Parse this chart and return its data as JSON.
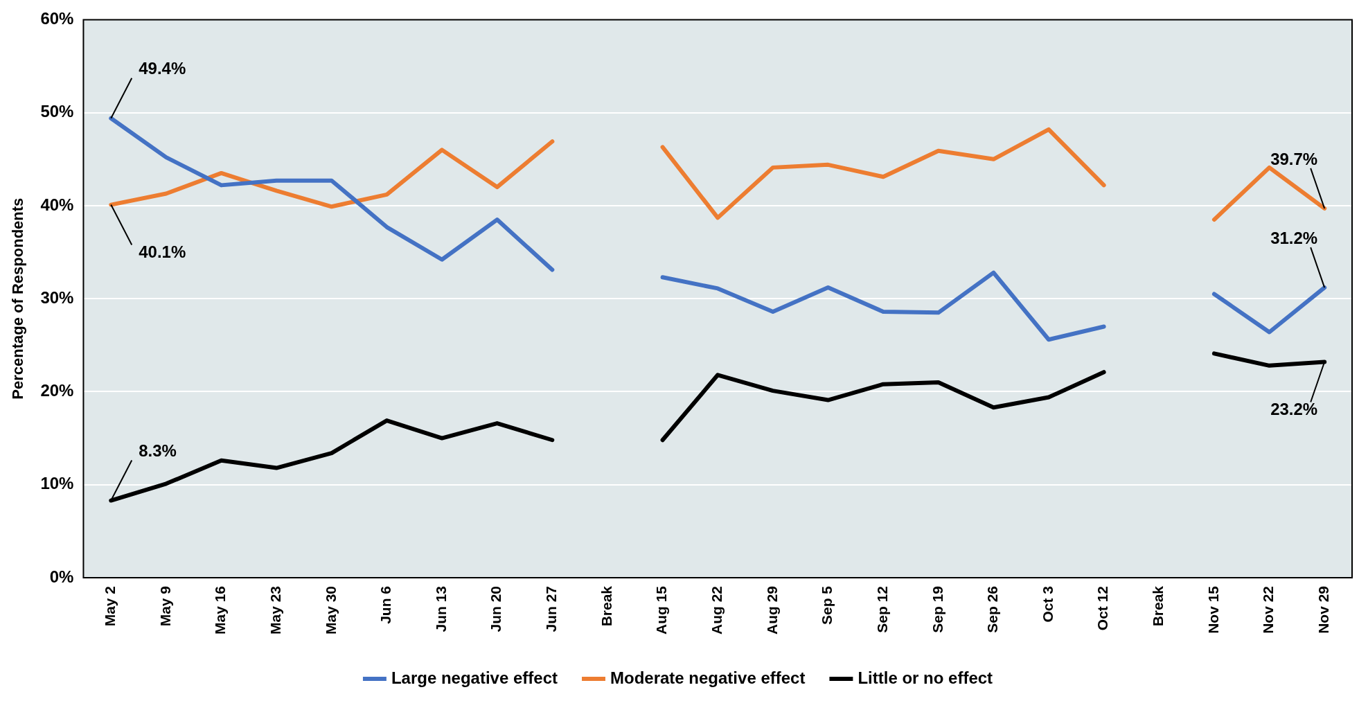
{
  "chart_data": {
    "type": "line",
    "ylabel": "Percentage of Respondents",
    "categories": [
      "May 2",
      "May 9",
      "May 16",
      "May 23",
      "May 30",
      "Jun 6",
      "Jun 13",
      "Jun 20",
      "Jun 27",
      "Break",
      "Aug 15",
      "Aug 22",
      "Aug 29",
      "Sep 5",
      "Sep 12",
      "Sep 19",
      "Sep 26",
      "Oct 3",
      "Oct 12",
      "Break",
      "Nov 15",
      "Nov 22",
      "Nov 29"
    ],
    "series": [
      {
        "name": "Large negative effect",
        "color": "#4472c4",
        "values": [
          49.4,
          45.2,
          42.2,
          42.7,
          42.7,
          37.7,
          34.2,
          38.5,
          33.1,
          null,
          32.3,
          31.1,
          28.6,
          31.2,
          28.6,
          28.5,
          32.8,
          25.6,
          27.0,
          null,
          30.5,
          26.4,
          31.2
        ],
        "value_labels": [
          "49.4%",
          null,
          null,
          null,
          null,
          null,
          null,
          null,
          null,
          null,
          null,
          null,
          null,
          null,
          null,
          null,
          null,
          null,
          null,
          null,
          null,
          null,
          "31.2%"
        ]
      },
      {
        "name": "Moderate negative effect",
        "color": "#ed7d31",
        "values": [
          40.1,
          41.3,
          43.5,
          41.6,
          39.9,
          41.2,
          46.0,
          42.0,
          46.9,
          null,
          46.3,
          38.7,
          44.1,
          44.4,
          43.1,
          45.9,
          45.0,
          48.2,
          42.2,
          null,
          38.5,
          44.1,
          39.7
        ],
        "value_labels": [
          "40.1%",
          null,
          null,
          null,
          null,
          null,
          null,
          null,
          null,
          null,
          null,
          null,
          null,
          null,
          null,
          null,
          null,
          null,
          null,
          null,
          null,
          null,
          "39.7%"
        ]
      },
      {
        "name": "Little or no effect",
        "color": "#000000",
        "values": [
          8.3,
          10.1,
          12.6,
          11.8,
          13.4,
          16.9,
          15.0,
          16.6,
          14.8,
          null,
          14.8,
          21.8,
          20.1,
          19.1,
          20.8,
          21.0,
          18.3,
          19.4,
          22.1,
          null,
          24.1,
          22.8,
          23.2
        ],
        "value_labels": [
          "8.3%",
          null,
          null,
          null,
          null,
          null,
          null,
          null,
          null,
          null,
          null,
          null,
          null,
          null,
          null,
          null,
          null,
          null,
          null,
          null,
          null,
          null,
          "23.2%"
        ]
      }
    ],
    "ylim": [
      0,
      60
    ],
    "yticks": [
      {
        "value": 0,
        "label": "0%"
      },
      {
        "value": 10,
        "label": "10%"
      },
      {
        "value": 20,
        "label": "20%"
      },
      {
        "value": 30,
        "label": "30%"
      },
      {
        "value": 40,
        "label": "40%"
      },
      {
        "value": 50,
        "label": "50%"
      },
      {
        "value": 60,
        "label": "60%"
      }
    ],
    "grid": "y",
    "legend": "bottom",
    "marker": "none",
    "line_style": "solid"
  }
}
